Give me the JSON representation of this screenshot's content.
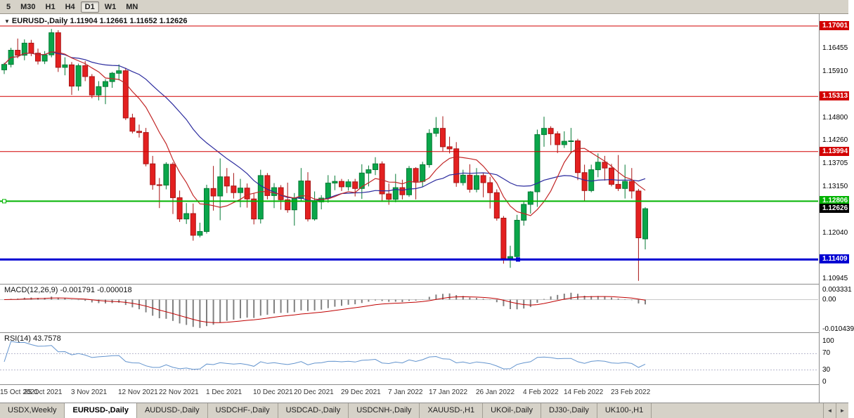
{
  "toolbar": {
    "timeframes": [
      {
        "label": "5",
        "active": false
      },
      {
        "label": "M30",
        "active": false
      },
      {
        "label": "H1",
        "active": false
      },
      {
        "label": "H4",
        "active": false
      },
      {
        "label": "D1",
        "active": true
      },
      {
        "label": "W1",
        "active": false
      },
      {
        "label": "MN",
        "active": false
      }
    ]
  },
  "chart_header": {
    "collapse_icon": "▼",
    "title": "EURUSD-,Daily",
    "ohlc": "1.11904 1.12661 1.11652 1.12626"
  },
  "chart_data": {
    "type": "candlestick",
    "symbol": "EURUSD-",
    "timeframe": "Daily",
    "current_bar": {
      "open": 1.11904,
      "high": 1.12661,
      "low": 1.11652,
      "close": 1.12626
    },
    "y_scale": {
      "price_top": 1.17001,
      "price_bottom": 1.10945
    },
    "y_axis_ticks": [
      "1.16455",
      "1.15910",
      "1.14800",
      "1.14260",
      "1.13705",
      "1.13150",
      "1.12040",
      "1.10945"
    ],
    "price_marks": [
      {
        "label": "1.17001",
        "price": 1.17001,
        "type": "resistance",
        "color": "#d20000",
        "line_width": 1
      },
      {
        "label": "1.15313",
        "price": 1.15313,
        "type": "resistance",
        "color": "#d20000",
        "line_width": 1
      },
      {
        "label": "1.13994",
        "price": 1.13994,
        "type": "resistance",
        "color": "#d20000",
        "line_width": 1
      },
      {
        "label": "1.12806",
        "price": 1.12806,
        "type": "support",
        "color": "#00b300",
        "line_width": 2
      },
      {
        "label": "1.12626",
        "price": 1.12626,
        "type": "current-price",
        "color": "#000000",
        "line_width": 0
      },
      {
        "label": "1.11409",
        "price": 1.11409,
        "type": "support",
        "color": "#0000d2",
        "line_width": 3
      }
    ],
    "handles": [
      {
        "price": 1.12806,
        "x": 6,
        "fill": "#ffffff",
        "stroke": "#00b300"
      },
      {
        "price": 1.11409,
        "x": 737,
        "fill": "#0000d2",
        "stroke": "#0000d2"
      }
    ],
    "x_ticks": [
      {
        "label": "15 Oct 2021",
        "i": 0
      },
      {
        "label": "25 Oct 2021",
        "i": 6
      },
      {
        "label": "3 Nov 2021",
        "i": 13
      },
      {
        "label": "12 Nov 2021",
        "i": 20
      },
      {
        "label": "22 Nov 2021",
        "i": 26
      },
      {
        "label": "1 Dec 2021",
        "i": 33
      },
      {
        "label": "10 Dec 2021",
        "i": 40
      },
      {
        "label": "20 Dec 2021",
        "i": 46
      },
      {
        "label": "29 Dec 2021",
        "i": 53
      },
      {
        "label": "7 Jan 2022",
        "i": 60
      },
      {
        "label": "17 Jan 2022",
        "i": 66
      },
      {
        "label": "26 Jan 2022",
        "i": 73
      },
      {
        "label": "4 Feb 2022",
        "i": 80
      },
      {
        "label": "14 Feb 2022",
        "i": 86
      },
      {
        "label": "23 Feb 2022",
        "i": 93
      }
    ],
    "ma": {
      "fast": {
        "period": 8,
        "color": "#c22727"
      },
      "slow": {
        "period": 21,
        "color": "#2b2b9e"
      }
    },
    "candles": [
      [
        1.1595,
        1.1612,
        1.1585,
        1.1608
      ],
      [
        1.1608,
        1.1648,
        1.1601,
        1.1642
      ],
      [
        1.1642,
        1.167,
        1.1623,
        1.163
      ],
      [
        1.163,
        1.1668,
        1.1618,
        1.1659
      ],
      [
        1.1659,
        1.1667,
        1.1628,
        1.1635
      ],
      [
        1.1635,
        1.1646,
        1.1608,
        1.1616
      ],
      [
        1.1616,
        1.164,
        1.1609,
        1.1631
      ],
      [
        1.1631,
        1.1693,
        1.1625,
        1.1684
      ],
      [
        1.1684,
        1.169,
        1.159,
        1.1601
      ],
      [
        1.1601,
        1.1625,
        1.1582,
        1.1607
      ],
      [
        1.1607,
        1.1614,
        1.1535,
        1.1556
      ],
      [
        1.1556,
        1.161,
        1.1545,
        1.1605
      ],
      [
        1.1605,
        1.1616,
        1.1568,
        1.1579
      ],
      [
        1.1579,
        1.1585,
        1.1527,
        1.1535
      ],
      [
        1.1535,
        1.1568,
        1.1522,
        1.1555
      ],
      [
        1.1555,
        1.1573,
        1.1513,
        1.1567
      ],
      [
        1.1567,
        1.159,
        1.1552,
        1.1587
      ],
      [
        1.1587,
        1.1608,
        1.157,
        1.1593
      ],
      [
        1.1593,
        1.16,
        1.1475,
        1.148
      ],
      [
        1.148,
        1.149,
        1.1443,
        1.1448
      ],
      [
        1.1448,
        1.1464,
        1.1433,
        1.1445
      ],
      [
        1.1445,
        1.1456,
        1.1364,
        1.137
      ],
      [
        1.137,
        1.1389,
        1.1308,
        1.132
      ],
      [
        1.132,
        1.1336,
        1.1264,
        1.1319
      ],
      [
        1.1319,
        1.1374,
        1.1309,
        1.1369
      ],
      [
        1.1369,
        1.1374,
        1.125,
        1.1289
      ],
      [
        1.1289,
        1.1306,
        1.1231,
        1.1238
      ],
      [
        1.1238,
        1.1276,
        1.1226,
        1.1251
      ],
      [
        1.1251,
        1.1275,
        1.1186,
        1.1199
      ],
      [
        1.1199,
        1.1229,
        1.1194,
        1.1208
      ],
      [
        1.1208,
        1.132,
        1.1203,
        1.1311
      ],
      [
        1.1311,
        1.1365,
        1.1258,
        1.1293
      ],
      [
        1.1293,
        1.1383,
        1.1235,
        1.1339
      ],
      [
        1.1339,
        1.136,
        1.13,
        1.1317
      ],
      [
        1.1317,
        1.1348,
        1.1287,
        1.1301
      ],
      [
        1.1301,
        1.1334,
        1.1266,
        1.1312
      ],
      [
        1.1312,
        1.1323,
        1.1265,
        1.1286
      ],
      [
        1.1286,
        1.13,
        1.1225,
        1.1238
      ],
      [
        1.1238,
        1.1356,
        1.1227,
        1.1342
      ],
      [
        1.1342,
        1.1348,
        1.1285,
        1.1294
      ],
      [
        1.1294,
        1.1324,
        1.1264,
        1.1313
      ],
      [
        1.1313,
        1.1319,
        1.126,
        1.1284
      ],
      [
        1.1284,
        1.1325,
        1.1253,
        1.126
      ],
      [
        1.126,
        1.13,
        1.1222,
        1.1287
      ],
      [
        1.1287,
        1.136,
        1.1281,
        1.1329
      ],
      [
        1.1329,
        1.135,
        1.1232,
        1.1238
      ],
      [
        1.1238,
        1.1304,
        1.1234,
        1.1279
      ],
      [
        1.1279,
        1.1295,
        1.1261,
        1.1288
      ],
      [
        1.1288,
        1.1343,
        1.1277,
        1.1324
      ],
      [
        1.1324,
        1.1342,
        1.1307,
        1.1328
      ],
      [
        1.1328,
        1.1334,
        1.1305,
        1.1315
      ],
      [
        1.1315,
        1.1333,
        1.1306,
        1.1327
      ],
      [
        1.1327,
        1.1334,
        1.1292,
        1.1311
      ],
      [
        1.1311,
        1.1369,
        1.1286,
        1.1348
      ],
      [
        1.1348,
        1.1366,
        1.1316,
        1.1356
      ],
      [
        1.1356,
        1.1386,
        1.1343,
        1.137
      ],
      [
        1.137,
        1.1376,
        1.1279,
        1.1298
      ],
      [
        1.1298,
        1.1323,
        1.1272,
        1.1285
      ],
      [
        1.1285,
        1.1346,
        1.1278,
        1.1313
      ],
      [
        1.1313,
        1.1332,
        1.1285,
        1.1296
      ],
      [
        1.1296,
        1.1365,
        1.1291,
        1.1359
      ],
      [
        1.1359,
        1.1362,
        1.1285,
        1.1328
      ],
      [
        1.1328,
        1.1375,
        1.1314,
        1.1368
      ],
      [
        1.1368,
        1.1453,
        1.1361,
        1.1443
      ],
      [
        1.1443,
        1.1482,
        1.1435,
        1.1455
      ],
      [
        1.1455,
        1.1484,
        1.14,
        1.1411
      ],
      [
        1.1411,
        1.1435,
        1.1395,
        1.1406
      ],
      [
        1.1406,
        1.1422,
        1.1315,
        1.1325
      ],
      [
        1.1325,
        1.1356,
        1.1318,
        1.1343
      ],
      [
        1.1343,
        1.1369,
        1.1301,
        1.1309
      ],
      [
        1.1309,
        1.136,
        1.1302,
        1.1342
      ],
      [
        1.1342,
        1.1348,
        1.129,
        1.1325
      ],
      [
        1.1325,
        1.1339,
        1.1263,
        1.1301
      ],
      [
        1.1301,
        1.1309,
        1.1234,
        1.124
      ],
      [
        1.124,
        1.1245,
        1.1131,
        1.1144
      ],
      [
        1.1144,
        1.1174,
        1.1121,
        1.1148
      ],
      [
        1.1148,
        1.1248,
        1.1144,
        1.1235
      ],
      [
        1.1235,
        1.1279,
        1.1222,
        1.1273
      ],
      [
        1.1273,
        1.1305,
        1.1251,
        1.1303
      ],
      [
        1.1303,
        1.1452,
        1.1267,
        1.144
      ],
      [
        1.144,
        1.1483,
        1.1411,
        1.1455
      ],
      [
        1.1455,
        1.146,
        1.1415,
        1.1442
      ],
      [
        1.1442,
        1.1448,
        1.1396,
        1.1416
      ],
      [
        1.1416,
        1.1448,
        1.1408,
        1.1424
      ],
      [
        1.1424,
        1.1456,
        1.1395,
        1.1425
      ],
      [
        1.1425,
        1.143,
        1.1331,
        1.1349
      ],
      [
        1.1349,
        1.1368,
        1.128,
        1.1306
      ],
      [
        1.1306,
        1.1368,
        1.1302,
        1.1356
      ],
      [
        1.1356,
        1.1395,
        1.1338,
        1.1374
      ],
      [
        1.1374,
        1.1389,
        1.133,
        1.136
      ],
      [
        1.136,
        1.137,
        1.1316,
        1.1321
      ],
      [
        1.1321,
        1.1391,
        1.1305,
        1.1311
      ],
      [
        1.1311,
        1.1368,
        1.1287,
        1.1328
      ],
      [
        1.1328,
        1.136,
        1.1287,
        1.1305
      ],
      [
        1.1305,
        1.131,
        1.109,
        1.1193
      ],
      [
        1.11904,
        1.12661,
        1.11652,
        1.12626
      ]
    ],
    "indicators": {
      "macd": {
        "label": "MACD(12,26,9) -0.001791 -0.000018",
        "params": [
          12,
          26,
          9
        ],
        "values_text": [
          "-0.001791",
          "-0.000018"
        ],
        "axis_ticks": [
          "0.003331",
          "0.00",
          "-0.010439"
        ],
        "scale_max": 0.003331,
        "scale_min": -0.010439
      },
      "rsi": {
        "label": "RSI(14) 43.7578",
        "period": 14,
        "value_text": "43.7578",
        "axis_ticks": [
          100,
          70,
          30,
          0
        ],
        "levels": [
          70,
          30
        ]
      }
    }
  },
  "tabbar": {
    "tabs": [
      {
        "label": "USDX,Weekly",
        "active": false
      },
      {
        "label": "EURUSD-,Daily",
        "active": true
      },
      {
        "label": "AUDUSD-,Daily",
        "active": false
      },
      {
        "label": "USDCHF-,Daily",
        "active": false
      },
      {
        "label": "USDCAD-,Daily",
        "active": false
      },
      {
        "label": "USDCNH-,Daily",
        "active": false
      },
      {
        "label": "XAUUSD-,H1",
        "active": false
      },
      {
        "label": "UKOil-,Daily",
        "active": false
      },
      {
        "label": "DJ30-,Daily",
        "active": false
      },
      {
        "label": "UK100-,H1",
        "active": false
      }
    ],
    "scroll_left": "◄",
    "scroll_right": "►"
  },
  "colors": {
    "candle_up": "#0aa64a",
    "candle_up_border": "#067a35",
    "candle_down": "#e32020",
    "candle_down_border": "#a81414",
    "macd_hist": "#808080",
    "macd_signal": "#c00000",
    "rsi_line": "#6394ce",
    "rsi_level": "#b4b4cc"
  }
}
